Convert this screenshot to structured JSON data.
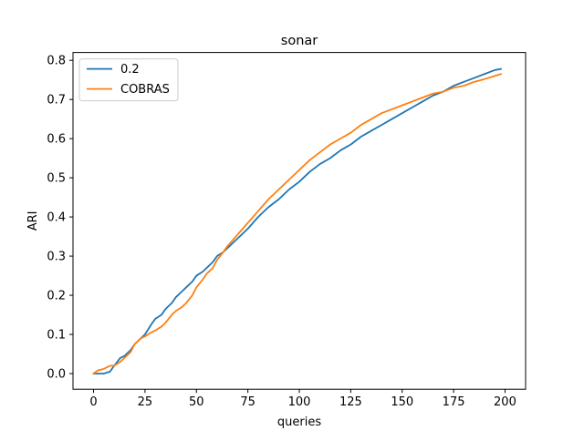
{
  "chart_data": {
    "type": "line",
    "title": "sonar",
    "xlabel": "queries",
    "ylabel": "ARI",
    "xlim": [
      -10,
      210
    ],
    "ylim": [
      -0.04,
      0.82
    ],
    "xticks": [
      0,
      25,
      50,
      75,
      100,
      125,
      150,
      175,
      200
    ],
    "xtick_labels": [
      "0",
      "25",
      "50",
      "75",
      "100",
      "125",
      "150",
      "175",
      "200"
    ],
    "yticks": [
      0.0,
      0.1,
      0.2,
      0.3,
      0.4,
      0.5,
      0.6,
      0.7,
      0.8
    ],
    "ytick_labels": [
      "0.0",
      "0.1",
      "0.2",
      "0.3",
      "0.4",
      "0.5",
      "0.6",
      "0.7",
      "0.8"
    ],
    "grid": false,
    "legend_position": "upper left",
    "series": [
      {
        "name": "0.2",
        "color": "#1f77b4",
        "x": [
          0,
          5,
          8,
          10,
          13,
          15,
          18,
          20,
          23,
          25,
          28,
          30,
          33,
          35,
          38,
          40,
          43,
          45,
          48,
          50,
          53,
          55,
          58,
          60,
          63,
          65,
          70,
          75,
          80,
          85,
          90,
          95,
          100,
          105,
          110,
          115,
          120,
          125,
          130,
          135,
          140,
          145,
          150,
          155,
          160,
          165,
          170,
          175,
          180,
          185,
          190,
          195,
          198
        ],
        "y": [
          0.0,
          0.0,
          0.005,
          0.02,
          0.04,
          0.045,
          0.06,
          0.075,
          0.09,
          0.1,
          0.125,
          0.14,
          0.15,
          0.165,
          0.18,
          0.195,
          0.21,
          0.22,
          0.235,
          0.25,
          0.26,
          0.27,
          0.285,
          0.3,
          0.31,
          0.32,
          0.345,
          0.37,
          0.4,
          0.425,
          0.445,
          0.47,
          0.49,
          0.515,
          0.535,
          0.55,
          0.57,
          0.585,
          0.605,
          0.62,
          0.635,
          0.65,
          0.665,
          0.68,
          0.695,
          0.71,
          0.72,
          0.735,
          0.745,
          0.755,
          0.765,
          0.775,
          0.778
        ]
      },
      {
        "name": "COBRAS",
        "color": "#ff7f0e",
        "x": [
          0,
          2,
          5,
          8,
          10,
          13,
          15,
          18,
          20,
          23,
          25,
          28,
          30,
          33,
          35,
          38,
          40,
          43,
          45,
          48,
          50,
          53,
          55,
          58,
          60,
          63,
          65,
          70,
          75,
          80,
          85,
          90,
          95,
          100,
          105,
          110,
          115,
          120,
          125,
          130,
          135,
          140,
          145,
          150,
          155,
          160,
          165,
          170,
          175,
          180,
          185,
          190,
          195,
          198
        ],
        "y": [
          0.0,
          0.008,
          0.012,
          0.02,
          0.02,
          0.03,
          0.04,
          0.055,
          0.075,
          0.09,
          0.095,
          0.105,
          0.11,
          0.12,
          0.13,
          0.15,
          0.16,
          0.17,
          0.18,
          0.2,
          0.22,
          0.24,
          0.255,
          0.27,
          0.29,
          0.31,
          0.325,
          0.355,
          0.385,
          0.415,
          0.445,
          0.47,
          0.495,
          0.52,
          0.545,
          0.565,
          0.585,
          0.6,
          0.615,
          0.635,
          0.65,
          0.665,
          0.675,
          0.685,
          0.695,
          0.705,
          0.715,
          0.72,
          0.73,
          0.735,
          0.745,
          0.752,
          0.76,
          0.765
        ]
      }
    ]
  }
}
